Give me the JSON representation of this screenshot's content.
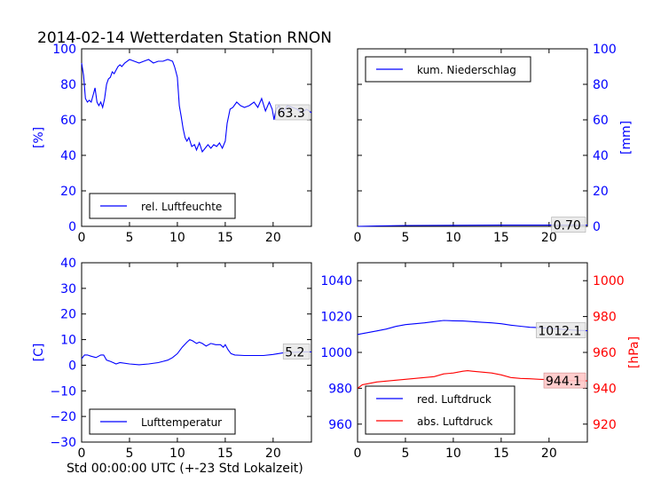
{
  "figure_title": "2014-02-14 Wetterdaten Station RNON",
  "x_label": "Std 00:00:00 UTC (+-23 Std Lokalzeit)",
  "colors": {
    "blue": "#0000ff",
    "red": "#ff0000"
  },
  "chart_data": [
    {
      "id": "humidity",
      "type": "line",
      "ylabel": "[%]",
      "xlim": [
        0,
        24
      ],
      "ylim": [
        0,
        100
      ],
      "xticks": [
        0,
        5,
        10,
        15,
        20
      ],
      "yticks": [
        0,
        20,
        40,
        60,
        80,
        100
      ],
      "legend_loc": "lower-left",
      "series": [
        {
          "name": "rel. Luftfeuchte",
          "color": "#0000ff",
          "x": [
            0,
            0.2,
            0.4,
            0.6,
            0.8,
            1.0,
            1.2,
            1.4,
            1.6,
            1.8,
            2.0,
            2.2,
            2.4,
            2.6,
            2.8,
            3.0,
            3.2,
            3.4,
            3.6,
            3.8,
            4.0,
            4.2,
            4.5,
            5.0,
            5.5,
            6.0,
            6.5,
            7.0,
            7.5,
            8.0,
            8.5,
            9.0,
            9.5,
            9.7,
            9.8,
            10.0,
            10.2,
            10.4,
            10.6,
            10.8,
            11.0,
            11.2,
            11.5,
            11.8,
            12.0,
            12.3,
            12.6,
            12.9,
            13.2,
            13.5,
            13.8,
            14.1,
            14.4,
            14.7,
            15.0,
            15.2,
            15.5,
            15.8,
            16.2,
            16.6,
            17.0,
            17.5,
            18.0,
            18.4,
            18.8,
            19.2,
            19.6,
            19.9,
            20.1,
            20.3,
            20.6,
            21.0,
            21.5,
            22.0,
            22.5,
            23.0,
            23.5,
            24.0
          ],
          "y": [
            92,
            85,
            72,
            70,
            71,
            70,
            74,
            78,
            70,
            68,
            70,
            67,
            72,
            80,
            83,
            84,
            87,
            86,
            88,
            90,
            91,
            90,
            92,
            94,
            93,
            92,
            93,
            94,
            92,
            93,
            93,
            94,
            93,
            90,
            88,
            84,
            68,
            62,
            55,
            50,
            48,
            50,
            45,
            46,
            43,
            47,
            42,
            44,
            46,
            44,
            46,
            45,
            47,
            44,
            48,
            58,
            66,
            67,
            70,
            68,
            67,
            68,
            70,
            67,
            72,
            65,
            70,
            66,
            60,
            66,
            68,
            64,
            68,
            67,
            66,
            64,
            66,
            64
          ]
        }
      ],
      "end_label": "63.3"
    },
    {
      "id": "precip",
      "type": "line",
      "ylabel": "[mm]",
      "xlim": [
        0,
        24
      ],
      "ylim": [
        0,
        100
      ],
      "xticks": [
        0,
        5,
        10,
        15,
        20
      ],
      "yticks": [
        0,
        20,
        40,
        60,
        80,
        100
      ],
      "legend_loc": "upper-left",
      "series": [
        {
          "name": "kum. Niederschlag",
          "color": "#0000ff",
          "x": [
            0,
            2,
            5,
            10,
            15,
            20,
            24
          ],
          "y": [
            0,
            0.2,
            0.5,
            0.6,
            0.7,
            0.7,
            0.7
          ]
        }
      ],
      "end_label": "0.70"
    },
    {
      "id": "temperature",
      "type": "line",
      "ylabel": "[C]",
      "xlim": [
        0,
        24
      ],
      "ylim": [
        -30,
        40
      ],
      "xticks": [
        0,
        5,
        10,
        15,
        20
      ],
      "yticks": [
        -30,
        -20,
        -10,
        0,
        10,
        20,
        30,
        40
      ],
      "legend_loc": "lower-left",
      "series": [
        {
          "name": "Lufttemperatur",
          "color": "#0000ff",
          "x": [
            0,
            0.3,
            0.6,
            1.0,
            1.5,
            2.0,
            2.3,
            2.6,
            3.0,
            3.3,
            3.6,
            4.0,
            5.0,
            6.0,
            7.0,
            8.0,
            8.5,
            9.0,
            9.5,
            10.0,
            10.5,
            11.0,
            11.3,
            11.6,
            12.0,
            12.3,
            12.6,
            13.0,
            13.5,
            14.0,
            14.5,
            14.8,
            15.0,
            15.3,
            15.6,
            16.0,
            17.0,
            18.0,
            19.0,
            20.0,
            21.0,
            22.0,
            23.0,
            24.0
          ],
          "y": [
            2.5,
            4,
            4,
            3.5,
            3,
            4,
            4,
            2,
            1.5,
            1,
            0.5,
            1,
            0.5,
            0.2,
            0.5,
            1,
            1.5,
            2,
            3,
            4.5,
            7,
            9,
            10,
            9.5,
            8.5,
            9,
            8.5,
            7.5,
            8.5,
            8,
            8,
            7,
            8,
            6,
            4.5,
            4,
            3.8,
            3.8,
            3.8,
            4.2,
            4.8,
            5,
            5.2,
            5.2
          ]
        }
      ],
      "end_label": "5.2"
    },
    {
      "id": "pressure",
      "type": "line",
      "ylabel": "[hPa]",
      "xlim": [
        0,
        24
      ],
      "ylim": [
        950,
        1050
      ],
      "ylim_right": [
        910,
        1010
      ],
      "xticks": [
        0,
        5,
        10,
        15,
        20
      ],
      "yticks": [
        960,
        980,
        1000,
        1020,
        1040
      ],
      "yticks_right": [
        920,
        940,
        960,
        980,
        1000
      ],
      "legend_loc": "lower-left",
      "series": [
        {
          "name": "red. Luftdruck",
          "color": "#0000ff",
          "axis": "left",
          "x": [
            0,
            1,
            2,
            3,
            4,
            5,
            6,
            7,
            8,
            9,
            10,
            11,
            12,
            13,
            14,
            15,
            16,
            17,
            18,
            19,
            20,
            21,
            22,
            23,
            24
          ],
          "y": [
            1010,
            1011,
            1012,
            1013,
            1014.5,
            1015.5,
            1016,
            1016.5,
            1017.2,
            1017.8,
            1017.6,
            1017.5,
            1017.2,
            1016.8,
            1016.5,
            1016,
            1015.2,
            1014.6,
            1014,
            1013.8,
            1013.4,
            1013,
            1012.6,
            1012.3,
            1012.1
          ]
        },
        {
          "name": "abs. Luftdruck",
          "color": "#ff0000",
          "axis": "right",
          "x": [
            0,
            0.5,
            1,
            2,
            3,
            4,
            5,
            6,
            7,
            8,
            9,
            10,
            11,
            11.5,
            12,
            13,
            14,
            15,
            16,
            17,
            18,
            19,
            20,
            21,
            22,
            23,
            24
          ],
          "y": [
            940,
            942,
            942.5,
            943.5,
            944,
            944.5,
            945,
            945.5,
            946,
            946.5,
            948,
            948.5,
            949.5,
            949.8,
            949.5,
            949,
            948.5,
            947.5,
            946,
            945.5,
            945.3,
            945,
            944.8,
            944.6,
            944.4,
            944.2,
            944.1
          ]
        }
      ],
      "end_label": "1012.1",
      "end_label_right": "944.1"
    }
  ]
}
